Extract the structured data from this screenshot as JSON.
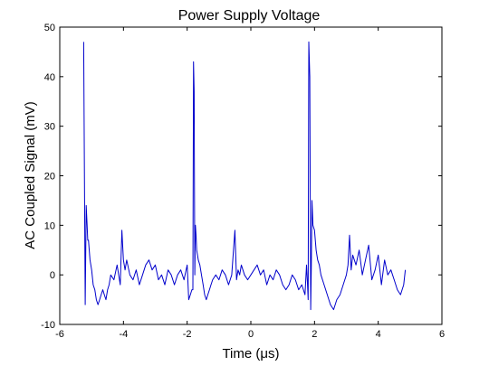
{
  "chart_data": {
    "type": "line",
    "title": "Power Supply Voltage",
    "xlabel": "Time (μs)",
    "ylabel": "AC Coupled Signal (mV)",
    "xlim": [
      -6,
      6
    ],
    "ylim": [
      -10,
      50
    ],
    "xticks": [
      "-6",
      "-4",
      "-2",
      "0",
      "2",
      "4",
      "6"
    ],
    "yticks": [
      "-10",
      "0",
      "10",
      "20",
      "30",
      "40",
      "50"
    ],
    "grid": false,
    "series": [
      {
        "color": "#0000cc",
        "x": [
          -5.25,
          -5.22,
          -5.2,
          -5.17,
          -5.14,
          -5.12,
          -5.1,
          -5.05,
          -5.0,
          -4.95,
          -4.9,
          -4.85,
          -4.8,
          -4.75,
          -4.7,
          -4.65,
          -4.6,
          -4.55,
          -4.5,
          -4.45,
          -4.4,
          -4.3,
          -4.2,
          -4.1,
          -4.05,
          -4.0,
          -3.95,
          -3.9,
          -3.8,
          -3.7,
          -3.6,
          -3.5,
          -3.4,
          -3.3,
          -3.2,
          -3.1,
          -3.0,
          -2.9,
          -2.8,
          -2.7,
          -2.6,
          -2.5,
          -2.4,
          -2.3,
          -2.2,
          -2.1,
          -2.0,
          -1.95,
          -1.9,
          -1.85,
          -1.82,
          -1.8,
          -1.78,
          -1.76,
          -1.74,
          -1.72,
          -1.7,
          -1.65,
          -1.6,
          -1.55,
          -1.5,
          -1.45,
          -1.4,
          -1.35,
          -1.3,
          -1.25,
          -1.2,
          -1.1,
          -1.0,
          -0.9,
          -0.8,
          -0.7,
          -0.6,
          -0.5,
          -0.45,
          -0.4,
          -0.35,
          -0.3,
          -0.2,
          -0.1,
          0.0,
          0.1,
          0.2,
          0.3,
          0.4,
          0.5,
          0.6,
          0.7,
          0.8,
          0.9,
          1.0,
          1.1,
          1.2,
          1.3,
          1.4,
          1.5,
          1.6,
          1.7,
          1.75,
          1.78,
          1.8,
          1.82,
          1.85,
          1.88,
          1.9,
          1.92,
          1.95,
          2.0,
          2.05,
          2.1,
          2.15,
          2.2,
          2.3,
          2.4,
          2.5,
          2.6,
          2.7,
          2.8,
          2.9,
          3.0,
          3.05,
          3.1,
          3.15,
          3.2,
          3.3,
          3.4,
          3.5,
          3.6,
          3.7,
          3.8,
          3.9,
          4.0,
          4.1,
          4.2,
          4.3,
          4.4,
          4.5,
          4.6,
          4.7,
          4.8,
          4.85
        ],
        "y": [
          47,
          15,
          -6,
          14,
          10,
          7,
          7,
          3,
          1,
          -2,
          -3,
          -5,
          -6,
          -5,
          -4,
          -3,
          -4,
          -5,
          -3,
          -2,
          0,
          -1,
          2,
          -2,
          9,
          3,
          1,
          3,
          0,
          -1,
          1,
          -2,
          0,
          2,
          3,
          1,
          2,
          -1,
          0,
          -2,
          1,
          0,
          -2,
          0,
          1,
          -1,
          2,
          -5,
          -4,
          -3,
          -3,
          43,
          37,
          0,
          10,
          8,
          5,
          3,
          2,
          0,
          -2,
          -4,
          -5,
          -4,
          -3,
          -2,
          -1,
          0,
          -1,
          1,
          0,
          -2,
          0,
          9,
          -1,
          1,
          0,
          2,
          0,
          -1,
          0,
          1,
          2,
          0,
          1,
          -2,
          0,
          -1,
          1,
          0,
          -2,
          -3,
          -2,
          0,
          -1,
          -3,
          -2,
          -4,
          2,
          -2,
          -5,
          47,
          40,
          -7,
          2,
          15,
          10,
          9,
          5,
          3,
          2,
          0,
          -2,
          -4,
          -6,
          -7,
          -5,
          -4,
          -2,
          0,
          2,
          8,
          1,
          4,
          2,
          5,
          0,
          3,
          6,
          -1,
          1,
          4,
          -2,
          3,
          0,
          1,
          -1,
          -3,
          -4,
          -2,
          1
        ]
      }
    ]
  }
}
